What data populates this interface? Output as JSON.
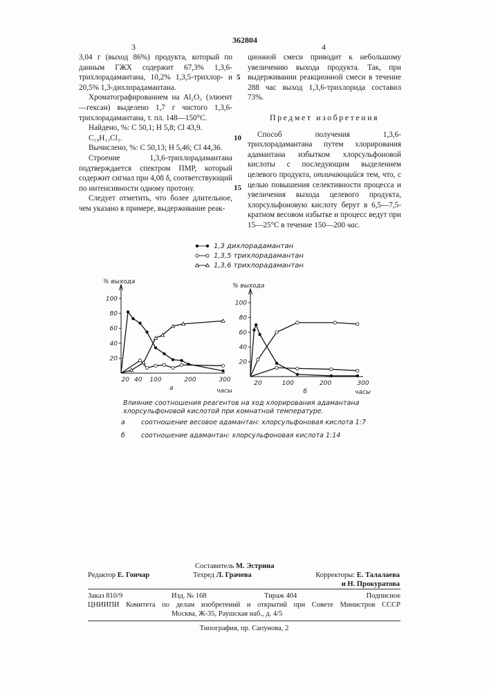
{
  "header": {
    "patent_number": "362804",
    "page_left": "3",
    "page_right": "4"
  },
  "left_column": [
    "3,04 г (выход 86%) продукта, который по данным ГЖХ содержит 67,3% 1,3,6-трихлорадамантана, 10,2% 1,3,5-трихлор- и 20,5% 1,3-дихлорадамантана.",
    "Хроматографированием на Al₂O₃ (элюент—гексан) выделено 1,7 г чистого 1,3,6-трихлорадамантана, т. пл. 148—150°С.",
    "Найдено, %: С 50,1; Н 5,8; Сl 43,9.",
    "C₁₀H₁₃Cl₃.",
    "Вычислено, %: С 50,13; Н 5,46; Сl 44,36.",
    "Строение 1,3,6-трихлорадамантана подтверждается спектром ПМР, который содержит сигнал при 4,08 δ, соответствующий по интенсивности одному протону.",
    "Следует отметить, что более длительное, чем указано в примере, выдерживание реак-"
  ],
  "line_numbers": [
    "5",
    "10",
    "15"
  ],
  "right_column": {
    "continuation": "ционной смеси приводит к небольшому увеличению выхода продукта. Так, при выдерживании реакционной смеси в течение 288 час выход 1,3,6-трихлорида составил 73%.",
    "section_title": "Предмет изобретения",
    "claim_part1": "Способ получения 1,3,6-трихлорадамантана путем хлорирования адамантана избытком хлорсульфоновой кислоты с последующим выделением целевого продукта, ",
    "claim_italic": "отличающийся",
    "claim_part2": " тем, что, с целью повышения селективности процесса и увеличения выхода целевого продукта, хлорсульфоновую кислоту берут в 6,5—7,5-кратном весовом избытке и процесс ведут при 15—25°С в течение 150—200 ",
    "claim_unit": "час."
  },
  "figure": {
    "legend": [
      {
        "marker": "filled-circle",
        "label": "1,3  дихлорадамантан"
      },
      {
        "marker": "open-circle",
        "label": "1,3,5  трихлорадамантан"
      },
      {
        "marker": "triangle",
        "label": "1,3,6  трихлорадамантан"
      }
    ],
    "caption": "Влияние соотношения реагентов на ход хлорирования адамантана хлорсульфоновой кислотой при комнатной температуре.",
    "note_a_letter": "а",
    "note_a": "соотношение весовое адамантан: хлорсульфоновая кислота 1:7",
    "note_b_letter": "б",
    "note_b": "соотношение адамантан: хлорсульфоновая кислота 1:14"
  },
  "chart_data": [
    {
      "type": "line",
      "panel_label": "а",
      "ylabel": "% выхода",
      "xlabel": "часы",
      "xlim": [
        0,
        300
      ],
      "ylim": [
        0,
        100
      ],
      "xticks": [
        "20",
        "40",
        "100",
        "200",
        "300"
      ],
      "yticks": [
        "20",
        "40",
        "60",
        "80",
        "100"
      ],
      "series": [
        {
          "name": "1,3 дихлорадамантан",
          "marker": "filled-circle",
          "points": [
            [
              20,
              82
            ],
            [
              35,
              73
            ],
            [
              55,
              67
            ],
            [
              75,
              55
            ],
            [
              100,
              34
            ],
            [
              125,
              26
            ],
            [
              150,
              18
            ],
            [
              175,
              17
            ],
            [
              195,
              12
            ],
            [
              295,
              3
            ]
          ]
        },
        {
          "name": "1,3,5 трихлорадамантан",
          "marker": "open-circle",
          "points": [
            [
              55,
              17
            ],
            [
              75,
              7
            ],
            [
              100,
              10
            ],
            [
              125,
              11
            ],
            [
              150,
              7
            ],
            [
              175,
              11
            ],
            [
              295,
              10
            ]
          ]
        },
        {
          "name": "1,3,6 трихлорадамантан",
          "marker": "triangle",
          "points": [
            [
              30,
              4
            ],
            [
              65,
              14
            ],
            [
              100,
              47
            ],
            [
              120,
              51
            ],
            [
              150,
              63
            ],
            [
              180,
              66
            ],
            [
              295,
              70
            ]
          ]
        }
      ]
    },
    {
      "type": "line",
      "panel_label": "б",
      "ylabel": "% выхода",
      "xlabel": "часы",
      "xlim": [
        0,
        300
      ],
      "ylim": [
        0,
        100
      ],
      "xticks": [
        "20",
        "100",
        "200",
        "300"
      ],
      "yticks": [
        "20",
        "40",
        "60",
        "80",
        "100"
      ],
      "series": [
        {
          "name": "1,3 дихлорадамантан",
          "marker": "filled-circle",
          "points": [
            [
              10,
              63
            ],
            [
              15,
              70
            ],
            [
              25,
              57
            ],
            [
              70,
              18
            ],
            [
              125,
              3
            ],
            [
              215,
              1
            ],
            [
              285,
              1
            ]
          ]
        },
        {
          "name": "1,3,5 трихлорадамантан",
          "marker": "open-circle",
          "points": [
            [
              70,
              12
            ],
            [
              125,
              11
            ],
            [
              215,
              10
            ],
            [
              285,
              8
            ]
          ]
        },
        {
          "name": "1,3,6 трихлорадамантан",
          "marker": "open-circle",
          "points": [
            [
              20,
              23
            ],
            [
              70,
              60
            ],
            [
              125,
              73
            ],
            [
              225,
              73
            ],
            [
              285,
              71
            ]
          ]
        }
      ]
    }
  ],
  "footer": {
    "compiler_label": "Составитель",
    "compiler": "М. Эстрина",
    "editor_label": "Редактор",
    "editor": "Е. Гончар",
    "techred_label": "Техред",
    "techred": "Л. Грачева",
    "correctors_label": "Корректоры:",
    "corrector1": "Е. Талалаева",
    "corrector2": "и Н. Прокуратова",
    "order": "Заказ 810/9",
    "edition": "Изд. № 168",
    "circulation": "Тираж 404",
    "subscription": "Подписное",
    "org": "ЦНИИПИ Комитета по делам изобретений и открытий при Совете Министров СССР",
    "address": "Москва, Ж-35, Раушская наб., д. 4/5",
    "printer": "Типография, пр. Сапунова, 2"
  }
}
